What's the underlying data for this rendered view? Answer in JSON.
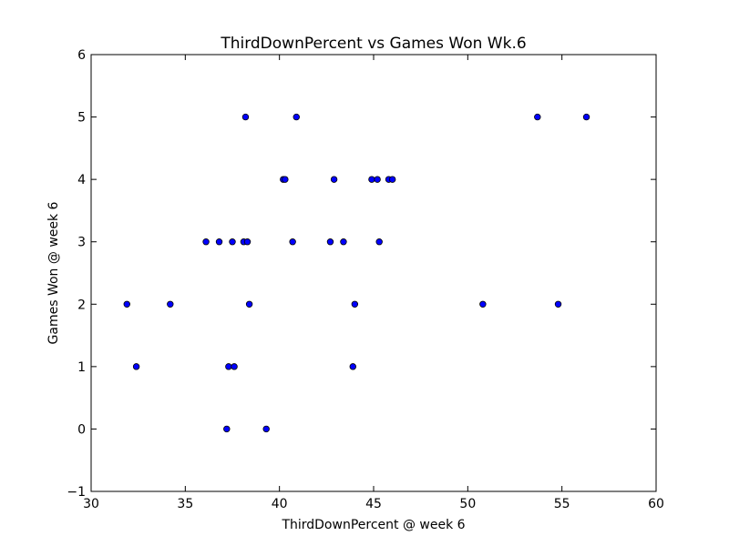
{
  "chart_data": {
    "type": "scatter",
    "title": "ThirdDownPercent vs Games Won Wk.6",
    "xlabel": "ThirdDownPercent @ week 6",
    "ylabel": "Games Won @ week 6",
    "xlim": [
      30,
      60
    ],
    "ylim": [
      -1,
      6
    ],
    "xticks": [
      30,
      35,
      40,
      45,
      50,
      55,
      60
    ],
    "yticks": [
      -1,
      0,
      1,
      2,
      3,
      4,
      5,
      6
    ],
    "xtick_labels": [
      "30",
      "35",
      "40",
      "45",
      "50",
      "55",
      "60"
    ],
    "ytick_labels": [
      "−1",
      "0",
      "1",
      "2",
      "3",
      "4",
      "5",
      "6"
    ],
    "grid": false,
    "marker_color": "#0000ff",
    "marker_edge_color": "#000000",
    "points": [
      {
        "x": 31.9,
        "y": 2
      },
      {
        "x": 32.4,
        "y": 1
      },
      {
        "x": 34.2,
        "y": 2
      },
      {
        "x": 36.1,
        "y": 3
      },
      {
        "x": 36.8,
        "y": 3
      },
      {
        "x": 37.2,
        "y": 0
      },
      {
        "x": 37.3,
        "y": 1
      },
      {
        "x": 37.5,
        "y": 3
      },
      {
        "x": 37.6,
        "y": 1
      },
      {
        "x": 38.1,
        "y": 3
      },
      {
        "x": 38.2,
        "y": 5
      },
      {
        "x": 38.3,
        "y": 3
      },
      {
        "x": 38.4,
        "y": 2
      },
      {
        "x": 39.3,
        "y": 0
      },
      {
        "x": 40.2,
        "y": 4
      },
      {
        "x": 40.3,
        "y": 4
      },
      {
        "x": 40.7,
        "y": 3
      },
      {
        "x": 40.9,
        "y": 5
      },
      {
        "x": 42.7,
        "y": 3
      },
      {
        "x": 42.9,
        "y": 4
      },
      {
        "x": 43.4,
        "y": 3
      },
      {
        "x": 43.9,
        "y": 1
      },
      {
        "x": 44.0,
        "y": 2
      },
      {
        "x": 44.9,
        "y": 4
      },
      {
        "x": 45.2,
        "y": 4
      },
      {
        "x": 45.3,
        "y": 3
      },
      {
        "x": 45.8,
        "y": 4
      },
      {
        "x": 46.0,
        "y": 4
      },
      {
        "x": 50.8,
        "y": 2
      },
      {
        "x": 53.7,
        "y": 5
      },
      {
        "x": 54.8,
        "y": 2
      },
      {
        "x": 56.3,
        "y": 5
      }
    ]
  }
}
